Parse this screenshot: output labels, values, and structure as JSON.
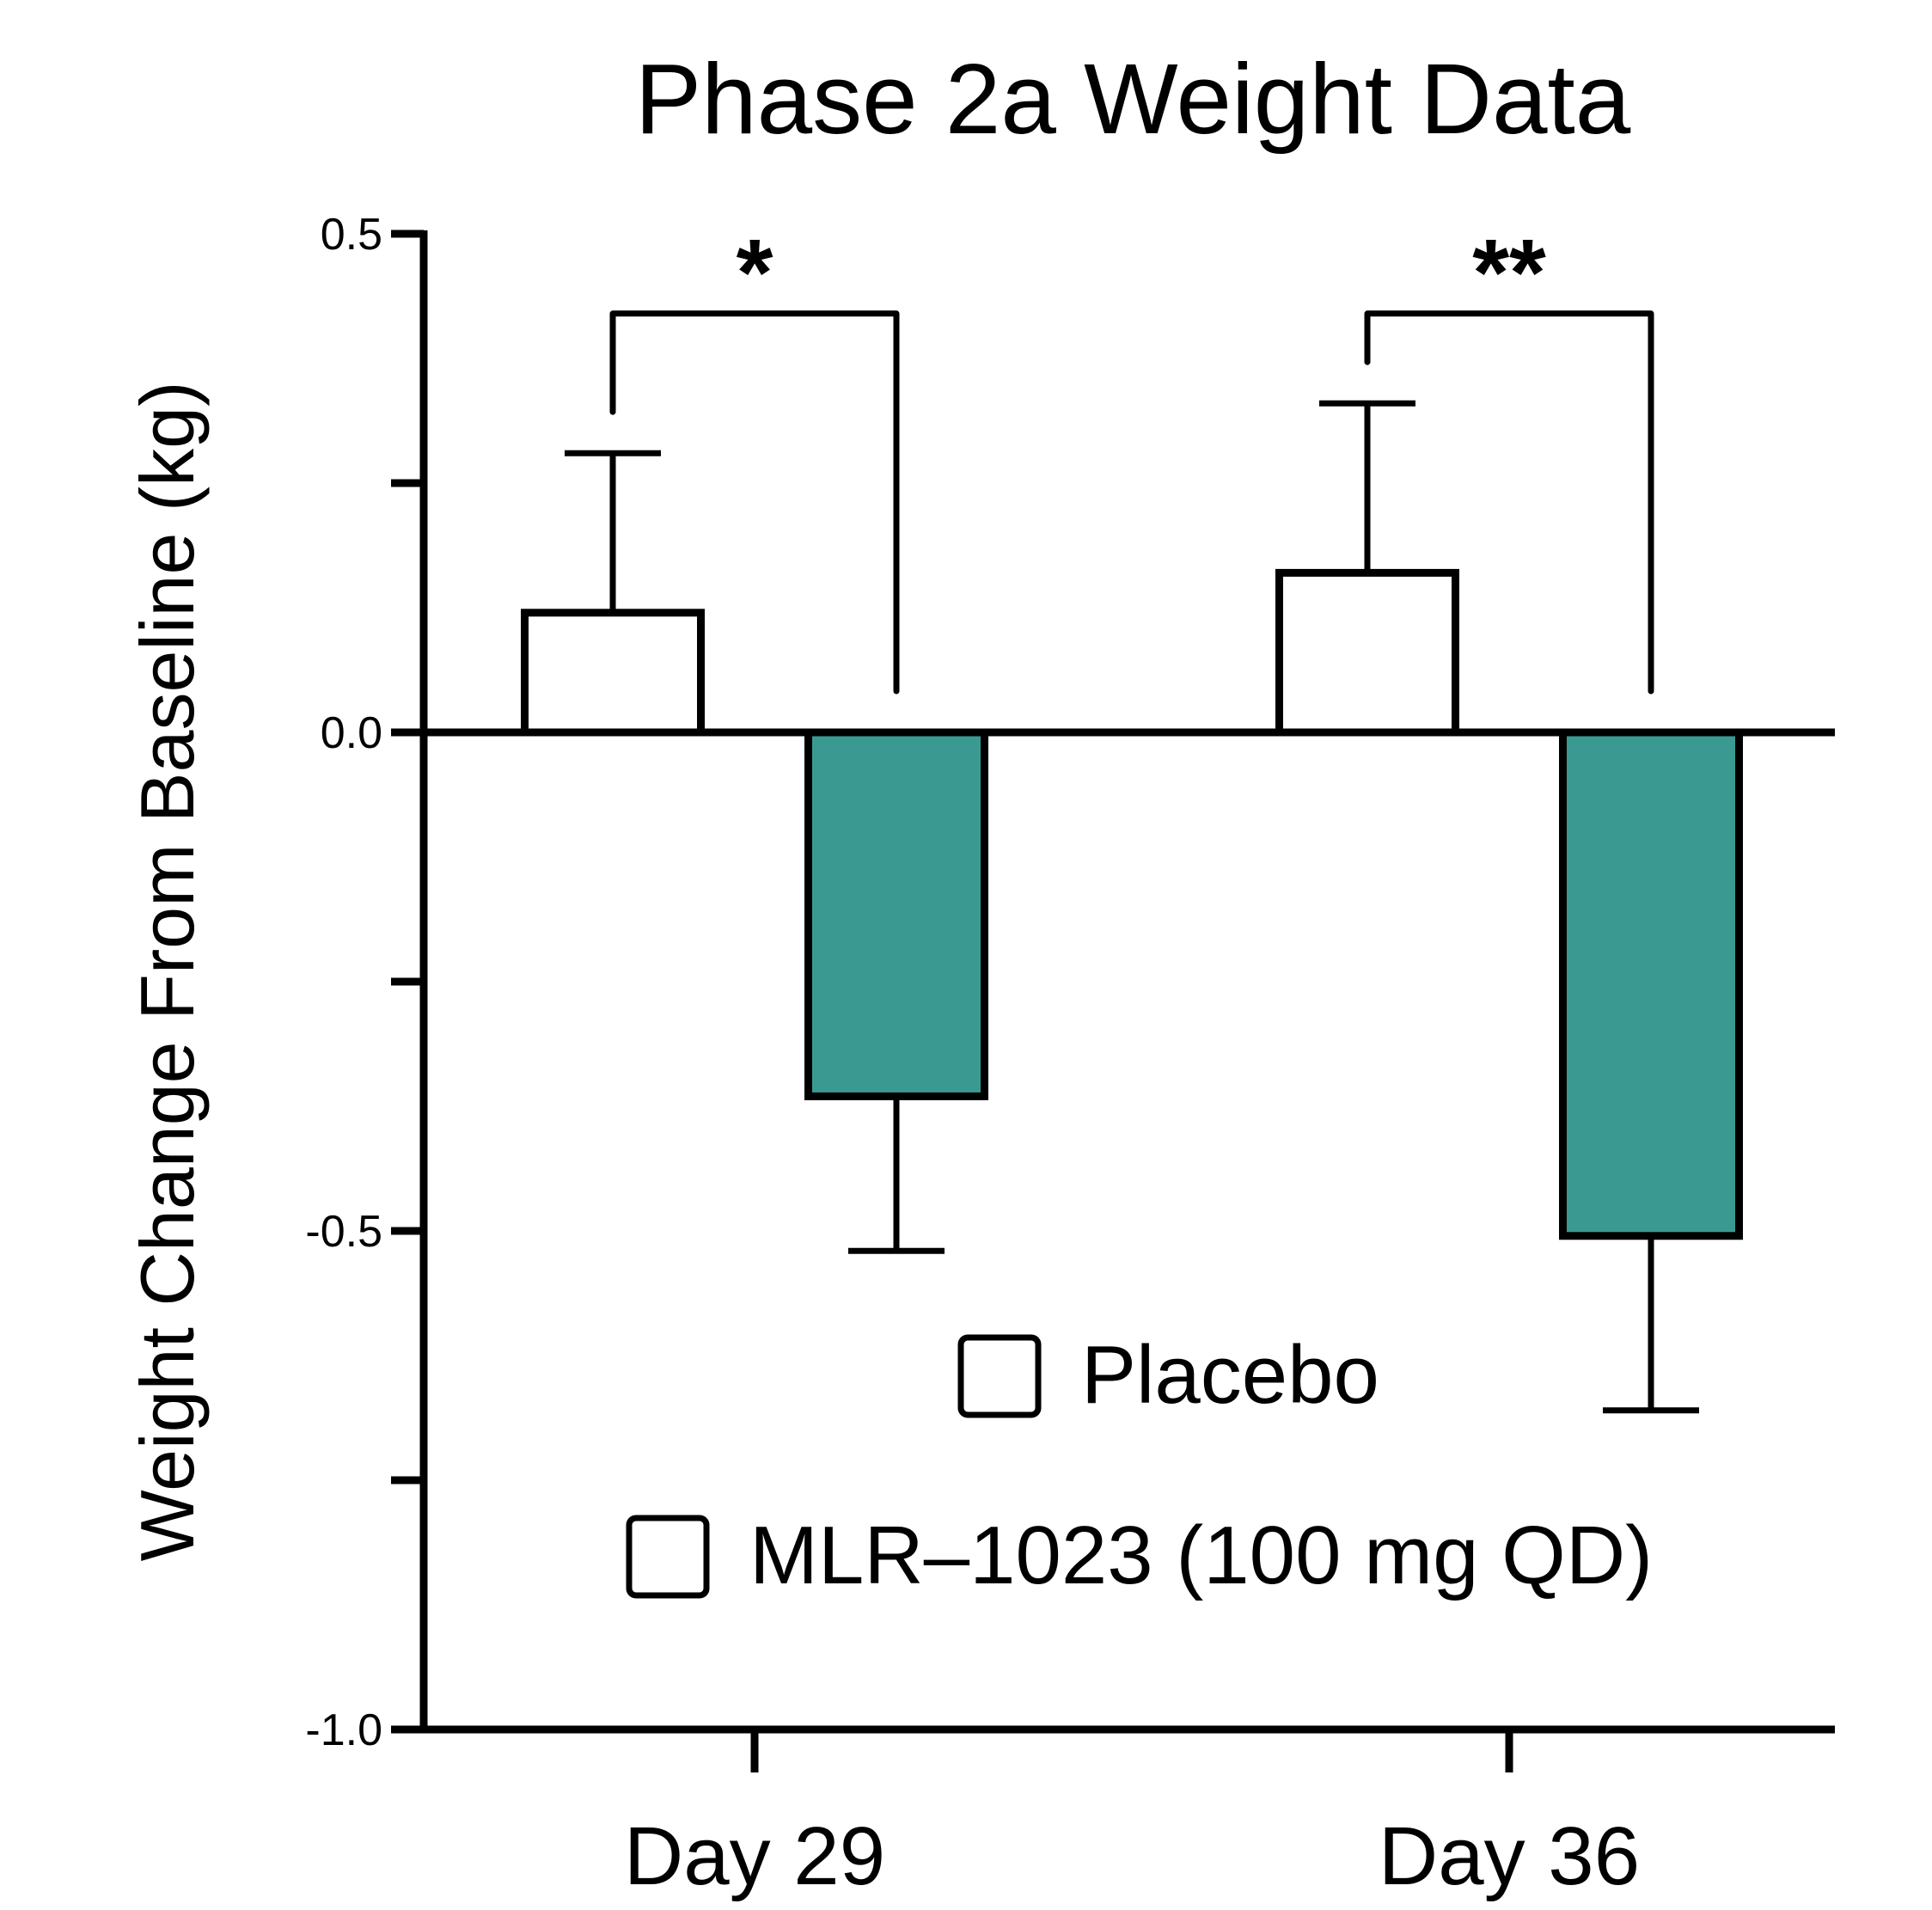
{
  "chart_data": {
    "type": "bar",
    "title": "Phase 2a Weight Data",
    "xlabel": "",
    "ylabel": "Weight Change From Baseline (kg)",
    "ylim": [
      -1.0,
      0.5
    ],
    "y_ticks": [
      0.5,
      0.25,
      0.0,
      -0.25,
      -0.5,
      -0.75,
      -1.0
    ],
    "y_tick_labels": {
      "0.5": "0.5",
      "0": "0.0",
      "-0.5": "-0.5",
      "-1": "-1.0"
    },
    "categories": [
      "Day 29",
      "Day 36"
    ],
    "series": [
      {
        "name": "Placebo",
        "color": "#ffffff",
        "values": [
          0.12,
          0.16
        ],
        "errors": [
          0.16,
          0.17
        ]
      },
      {
        "name": "MLR–1023 (100 mg QD)",
        "color": "#3a9a92",
        "values": [
          -0.365,
          -0.505
        ],
        "errors": [
          0.155,
          0.175
        ]
      }
    ],
    "significance": [
      {
        "category": "Day 29",
        "label": "*",
        "level": 0.42
      },
      {
        "category": "Day 36",
        "label": "**",
        "level": 0.42
      }
    ],
    "legend": {
      "position": "bottom-right",
      "entries": [
        "Placebo",
        "MLR–1023 (100 mg QD)"
      ]
    },
    "grid": false
  }
}
